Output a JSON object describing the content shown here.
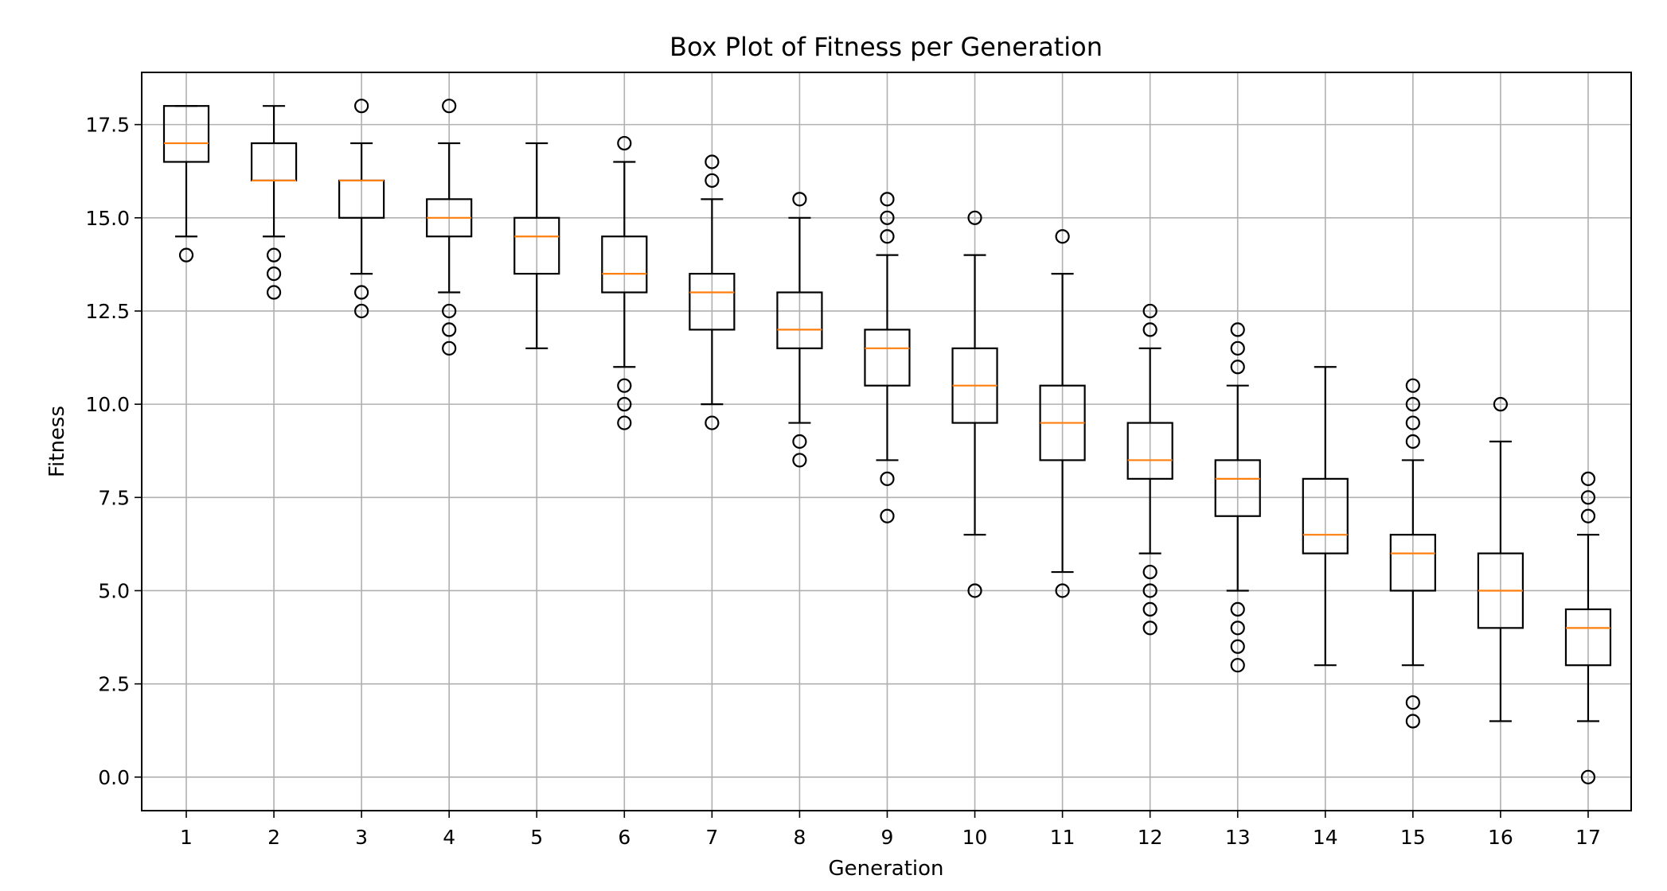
{
  "chart_data": {
    "type": "box",
    "title": "Box Plot of Fitness per Generation",
    "xlabel": "Generation",
    "ylabel": "Fitness",
    "ylim": [
      -0.9,
      18.9
    ],
    "yticks": [
      "0.0",
      "2.5",
      "5.0",
      "7.5",
      "10.0",
      "12.5",
      "15.0",
      "17.5"
    ],
    "categories": [
      "1",
      "2",
      "3",
      "4",
      "5",
      "6",
      "7",
      "8",
      "9",
      "10",
      "11",
      "12",
      "13",
      "14",
      "15",
      "16",
      "17"
    ],
    "grid": true,
    "colors": {
      "box": "#000000",
      "median": "#ff7f0e",
      "grid": "#b0b0b0"
    },
    "boxes": [
      {
        "generation": "1",
        "whisker_low": 14.5,
        "q1": 16.5,
        "median": 17.0,
        "q3": 18.0,
        "whisker_high": 18.0,
        "outliers": [
          14.0
        ]
      },
      {
        "generation": "2",
        "whisker_low": 14.5,
        "q1": 16.0,
        "median": 16.0,
        "q3": 17.0,
        "whisker_high": 18.0,
        "outliers": [
          14.0,
          13.5,
          13.0
        ]
      },
      {
        "generation": "3",
        "whisker_low": 13.5,
        "q1": 15.0,
        "median": 16.0,
        "q3": 16.0,
        "whisker_high": 17.0,
        "outliers": [
          18.0,
          13.0,
          12.5
        ]
      },
      {
        "generation": "4",
        "whisker_low": 13.0,
        "q1": 14.5,
        "median": 15.0,
        "q3": 15.5,
        "whisker_high": 17.0,
        "outliers": [
          18.0,
          12.5,
          12.0,
          11.5
        ]
      },
      {
        "generation": "5",
        "whisker_low": 11.5,
        "q1": 13.5,
        "median": 14.5,
        "q3": 15.0,
        "whisker_high": 17.0,
        "outliers": []
      },
      {
        "generation": "6",
        "whisker_low": 11.0,
        "q1": 13.0,
        "median": 13.5,
        "q3": 14.5,
        "whisker_high": 16.5,
        "outliers": [
          17.0,
          10.5,
          10.0,
          9.5
        ]
      },
      {
        "generation": "7",
        "whisker_low": 10.0,
        "q1": 12.0,
        "median": 13.0,
        "q3": 13.5,
        "whisker_high": 15.5,
        "outliers": [
          16.5,
          16.0,
          9.5
        ]
      },
      {
        "generation": "8",
        "whisker_low": 9.5,
        "q1": 11.5,
        "median": 12.0,
        "q3": 13.0,
        "whisker_high": 15.0,
        "outliers": [
          15.5,
          9.0,
          8.5
        ]
      },
      {
        "generation": "9",
        "whisker_low": 8.5,
        "q1": 10.5,
        "median": 11.5,
        "q3": 12.0,
        "whisker_high": 14.0,
        "outliers": [
          15.5,
          15.0,
          14.5,
          8.0,
          7.0
        ]
      },
      {
        "generation": "10",
        "whisker_low": 6.5,
        "q1": 9.5,
        "median": 10.5,
        "q3": 11.5,
        "whisker_high": 14.0,
        "outliers": [
          15.0,
          5.0
        ]
      },
      {
        "generation": "11",
        "whisker_low": 5.5,
        "q1": 8.5,
        "median": 9.5,
        "q3": 10.5,
        "whisker_high": 13.5,
        "outliers": [
          14.5,
          5.0
        ]
      },
      {
        "generation": "12",
        "whisker_low": 6.0,
        "q1": 8.0,
        "median": 8.5,
        "q3": 9.5,
        "whisker_high": 11.5,
        "outliers": [
          12.5,
          12.0,
          5.5,
          5.0,
          4.5,
          4.0
        ]
      },
      {
        "generation": "13",
        "whisker_low": 5.0,
        "q1": 7.0,
        "median": 8.0,
        "q3": 8.5,
        "whisker_high": 10.5,
        "outliers": [
          12.0,
          11.5,
          11.0,
          4.5,
          4.0,
          3.5,
          3.0
        ]
      },
      {
        "generation": "14",
        "whisker_low": 3.0,
        "q1": 6.0,
        "median": 6.5,
        "q3": 8.0,
        "whisker_high": 11.0,
        "outliers": []
      },
      {
        "generation": "15",
        "whisker_low": 3.0,
        "q1": 5.0,
        "median": 6.0,
        "q3": 6.5,
        "whisker_high": 8.5,
        "outliers": [
          10.5,
          10.0,
          9.5,
          9.0,
          2.0,
          1.5
        ]
      },
      {
        "generation": "16",
        "whisker_low": 1.5,
        "q1": 4.0,
        "median": 5.0,
        "q3": 6.0,
        "whisker_high": 9.0,
        "outliers": [
          10.0
        ]
      },
      {
        "generation": "17",
        "whisker_low": 1.5,
        "q1": 3.0,
        "median": 4.0,
        "q3": 4.5,
        "whisker_high": 6.5,
        "outliers": [
          8.0,
          7.5,
          7.0,
          0.0
        ]
      }
    ]
  }
}
